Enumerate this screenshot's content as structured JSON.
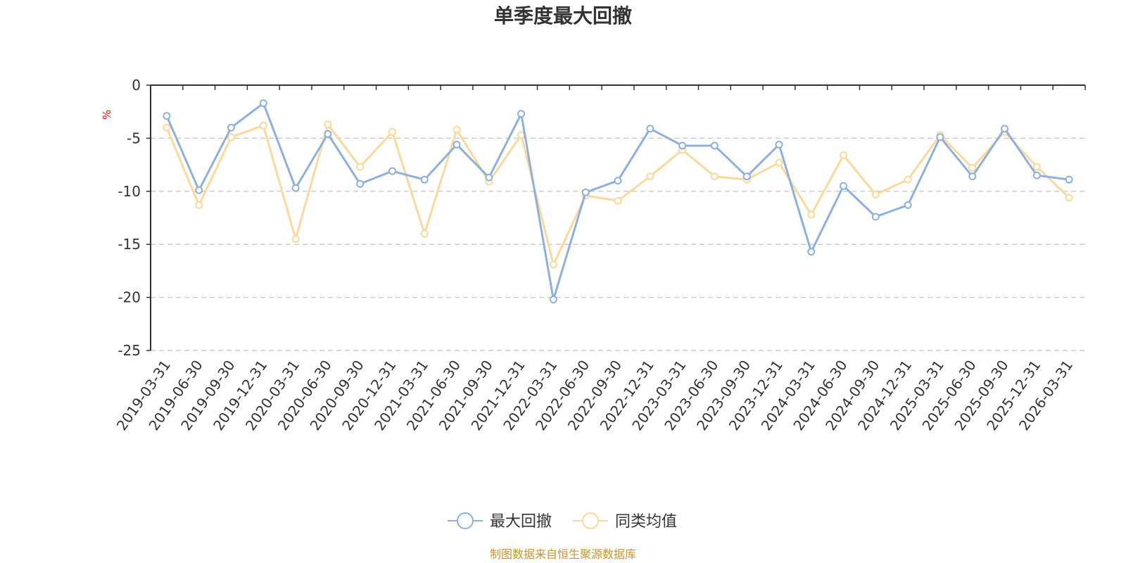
{
  "chart_data": {
    "type": "line",
    "title": "单季度最大回撤",
    "ylabel": "%",
    "ylim": [
      -25,
      0
    ],
    "yticks": [
      0,
      -5,
      -10,
      -15,
      -20,
      -25
    ],
    "grid": true,
    "legend_position": "bottom",
    "categories": [
      "2019-03-31",
      "2019-06-30",
      "2019-09-30",
      "2019-12-31",
      "2020-03-31",
      "2020-06-30",
      "2020-09-30",
      "2020-12-31",
      "2021-03-31",
      "2021-06-30",
      "2021-09-30",
      "2021-12-31",
      "2022-03-31",
      "2022-06-30",
      "2022-09-30",
      "2022-12-31",
      "2023-03-31",
      "2023-06-30",
      "2023-09-30",
      "2023-12-31",
      "2024-03-31",
      "2024-06-30",
      "2024-09-30",
      "2024-12-31",
      "2025-03-31",
      "2025-06-30",
      "2025-09-30",
      "2025-12-31",
      "2026-03-31"
    ],
    "series": [
      {
        "name": "最大回撤",
        "color": "#8eb0dc",
        "values": [
          -2.9,
          -9.9,
          -4.0,
          -1.7,
          -9.7,
          -4.6,
          -9.3,
          -8.1,
          -8.9,
          -5.6,
          -8.7,
          -2.7,
          -20.2,
          -10.1,
          -9.0,
          -4.1,
          -5.7,
          -5.7,
          -8.6,
          -5.6,
          -15.7,
          -9.5,
          -12.4,
          -11.3,
          -4.9,
          -8.6,
          -4.1,
          -8.5,
          -8.9
        ]
      },
      {
        "name": "同类均值",
        "color": "#fbd99a",
        "values": [
          -4.0,
          -11.3,
          -4.9,
          -3.8,
          -14.5,
          -3.7,
          -7.7,
          -4.4,
          -14.0,
          -4.2,
          -9.1,
          -4.7,
          -16.9,
          -10.4,
          -10.9,
          -8.6,
          -6.1,
          -8.6,
          -8.9,
          -7.3,
          -12.2,
          -6.6,
          -10.3,
          -8.9,
          -4.7,
          -7.8,
          -4.4,
          -7.7,
          -10.6
        ]
      }
    ],
    "source_note": "制图数据来自恒生聚源数据库"
  }
}
